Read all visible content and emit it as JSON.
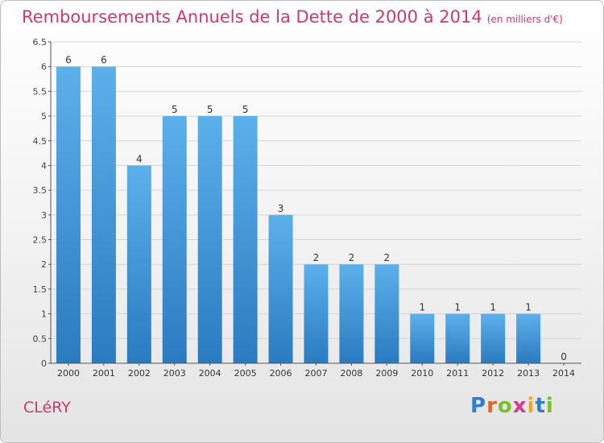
{
  "title": "Remboursements Annuels de la Dette de 2000 à 2014",
  "unit": "(en milliers d'€)",
  "place": "CLéRY",
  "logo": [
    "P",
    "r",
    "o",
    "x",
    "i",
    "t",
    "i"
  ],
  "colors": {
    "bar_top": "#5cb0ea",
    "bar_bottom": "#2a7bc0",
    "title": "#d0386b",
    "grid": "#d4d4d4",
    "axis": "#555555"
  },
  "chart_data": {
    "type": "bar",
    "categories": [
      "2000",
      "2001",
      "2002",
      "2003",
      "2004",
      "2005",
      "2006",
      "2007",
      "2008",
      "2009",
      "2010",
      "2011",
      "2012",
      "2013",
      "2014"
    ],
    "values": [
      6,
      6,
      4,
      5,
      5,
      5,
      3,
      2,
      2,
      2,
      1,
      1,
      1,
      1,
      0
    ],
    "value_labels": [
      "6",
      "6",
      "4",
      "5",
      "5",
      "5",
      "3",
      "2",
      "2",
      "2",
      "1",
      "1",
      "1",
      "1",
      "0"
    ],
    "yticks": [
      "0",
      "0.5",
      "1",
      "1.5",
      "2",
      "2.5",
      "3",
      "3.5",
      "4",
      "4.5",
      "5",
      "5.5",
      "6",
      "6.5"
    ],
    "ylim": [
      0,
      6.5
    ],
    "grid": true
  }
}
